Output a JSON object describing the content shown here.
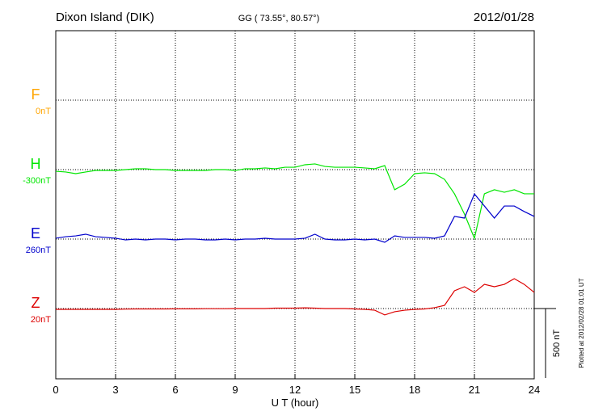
{
  "chart_data": {
    "type": "line",
    "title": "Dixon Island (DIK)",
    "subtitle": "GG ( 73.55°,  80.57°)",
    "date": "2012/01/28",
    "x_label": "U T (hour)",
    "scale_bar": {
      "value": 500,
      "label": "500 nT"
    },
    "footnote": "Plotted at 2012/02/28 01:01 UT",
    "xlim": [
      0,
      24
    ],
    "xticks": [
      0,
      3,
      6,
      9,
      12,
      15,
      18,
      21,
      24
    ],
    "grid": true,
    "x": [
      0,
      0.5,
      1,
      1.5,
      2,
      2.5,
      3,
      3.5,
      4,
      4.5,
      5,
      5.5,
      6,
      6.5,
      7,
      7.5,
      8,
      8.5,
      9,
      9.5,
      10,
      10.5,
      11,
      11.5,
      12,
      12.5,
      13,
      13.5,
      14,
      14.5,
      15,
      15.5,
      16,
      16.5,
      17,
      17.5,
      18,
      18.5,
      19,
      19.5,
      20,
      20.5,
      21,
      21.5,
      22,
      22.5,
      23,
      23.5,
      24
    ],
    "series": [
      {
        "name": "F",
        "baseline_label": "0nT",
        "color": "#ffa500"
      },
      {
        "name": "H",
        "baseline_label": "-300nT",
        "color": "#00e600",
        "values": [
          -12,
          -17,
          -29,
          -17,
          -6,
          -6,
          -6,
          0,
          6,
          6,
          0,
          0,
          -6,
          -6,
          -6,
          -6,
          0,
          0,
          -6,
          6,
          6,
          12,
          6,
          17,
          17,
          35,
          41,
          23,
          17,
          17,
          17,
          12,
          6,
          29,
          -145,
          -105,
          -29,
          -23,
          -29,
          -70,
          -174,
          -320,
          -494,
          -174,
          -145,
          -163,
          -145,
          -174,
          -174
        ]
      },
      {
        "name": "E",
        "baseline_label": "260nT",
        "color": "#0000cc",
        "values": [
          6,
          17,
          23,
          35,
          17,
          12,
          6,
          -6,
          0,
          -6,
          0,
          0,
          -6,
          0,
          0,
          -6,
          -6,
          0,
          -6,
          0,
          0,
          6,
          0,
          0,
          0,
          6,
          35,
          0,
          -6,
          -6,
          0,
          -6,
          0,
          -23,
          23,
          12,
          12,
          12,
          6,
          23,
          163,
          151,
          325,
          238,
          151,
          238,
          238,
          198,
          163
        ]
      },
      {
        "name": "Z",
        "baseline_label": "20nT",
        "color": "#dd0000",
        "values": [
          -6,
          -6,
          -6,
          -6,
          -6,
          -6,
          -6,
          -4,
          -3,
          -3,
          -3,
          -3,
          -2,
          -2,
          -2,
          -1,
          -1,
          -1,
          0,
          0,
          0,
          0,
          3,
          3,
          3,
          5,
          3,
          0,
          0,
          0,
          -3,
          -6,
          -12,
          -46,
          -23,
          -12,
          -6,
          -3,
          6,
          23,
          128,
          157,
          116,
          174,
          157,
          174,
          215,
          174,
          116
        ]
      }
    ]
  }
}
